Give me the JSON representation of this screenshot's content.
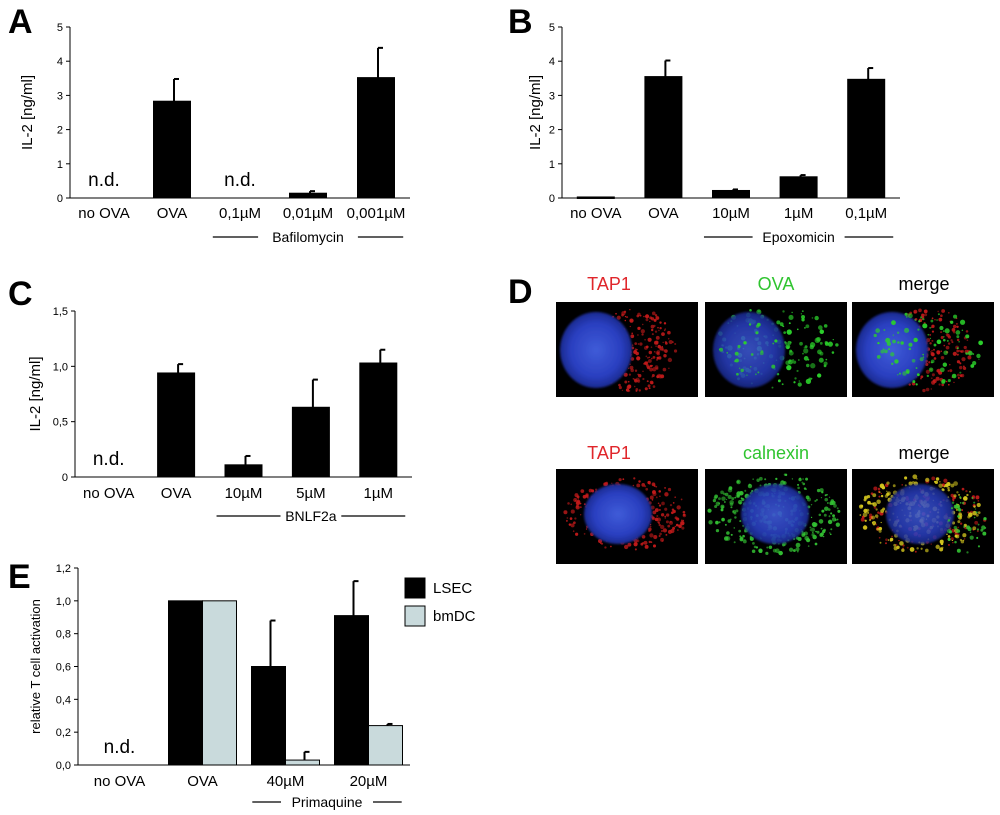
{
  "chart_data": [
    {
      "panel": "A",
      "type": "bar",
      "ylabel": "IL-2 [ng/ml]",
      "ylim": [
        0,
        5
      ],
      "yticks": [
        "0",
        "1",
        "2",
        "3",
        "4",
        "5"
      ],
      "categories": [
        "no OVA",
        "OVA",
        "0,1µM",
        "0,01µM",
        "0,001µM"
      ],
      "values": [
        null,
        2.83,
        null,
        0.14,
        3.52
      ],
      "errors": [
        null,
        0.65,
        null,
        0.06,
        0.87
      ],
      "annotations": [
        "n.d.",
        null,
        "n.d.",
        null,
        null
      ],
      "group_label": "Bafilomycin",
      "group_span": [
        2,
        4
      ],
      "color": "#000000"
    },
    {
      "panel": "B",
      "type": "bar",
      "ylabel": "IL-2 [ng/ml]",
      "ylim": [
        0,
        5
      ],
      "yticks": [
        "0",
        "1",
        "2",
        "3",
        "4",
        "5"
      ],
      "categories": [
        "no OVA",
        "OVA",
        "10µM",
        "1µM",
        "0,1µM"
      ],
      "values": [
        0.03,
        3.55,
        0.22,
        0.62,
        3.47
      ],
      "errors": [
        0,
        0.47,
        0.03,
        0.05,
        0.33
      ],
      "annotations": [
        null,
        null,
        null,
        null,
        null
      ],
      "group_label": "Epoxomicin",
      "group_span": [
        2,
        4
      ],
      "color": "#000000"
    },
    {
      "panel": "C",
      "type": "bar",
      "ylabel": "IL-2 [ng/ml]",
      "ylim": [
        0,
        1.5
      ],
      "yticks": [
        "0",
        "0,5",
        "1,0",
        "1,5"
      ],
      "categories": [
        "no OVA",
        "OVA",
        "10µM",
        "5µM",
        "1µM"
      ],
      "values": [
        null,
        0.94,
        0.11,
        0.63,
        1.03
      ],
      "errors": [
        null,
        0.08,
        0.08,
        0.25,
        0.12
      ],
      "annotations": [
        "n.d.",
        null,
        null,
        null,
        null
      ],
      "group_label": "BNLF2a",
      "group_span": [
        2,
        4
      ],
      "color": "#000000"
    },
    {
      "panel": "E",
      "type": "bar",
      "ylabel": "relative T cell activation",
      "ylim": [
        0,
        1.2
      ],
      "yticks": [
        "0,0",
        "0,2",
        "0,4",
        "0,6",
        "0,8",
        "1,0",
        "1,2"
      ],
      "categories": [
        "no OVA",
        "OVA",
        "40µM",
        "20µM"
      ],
      "series": [
        {
          "name": "LSEC",
          "color": "#000000",
          "values": [
            null,
            1.0,
            0.6,
            0.91
          ],
          "errors": [
            null,
            0,
            0.28,
            0.21
          ]
        },
        {
          "name": "bmDC",
          "color": "#c9dadc",
          "values": [
            null,
            1.0,
            0.03,
            0.24
          ],
          "errors": [
            null,
            0,
            0.05,
            0.01
          ]
        }
      ],
      "annotations": [
        "n.d.",
        null,
        null,
        null
      ],
      "group_label": "Primaquine",
      "group_span": [
        2,
        3
      ],
      "legend_position": "top-right"
    }
  ],
  "panelD": {
    "letter": "D",
    "row1": [
      "TAP1",
      "OVA",
      "merge"
    ],
    "row2": [
      "TAP1",
      "calnexin",
      "merge"
    ],
    "colors": {
      "red": "#e0262b",
      "green": "#2fc42f",
      "black": "#000000"
    }
  },
  "letters": {
    "A": "A",
    "B": "B",
    "C": "C",
    "E": "E"
  }
}
